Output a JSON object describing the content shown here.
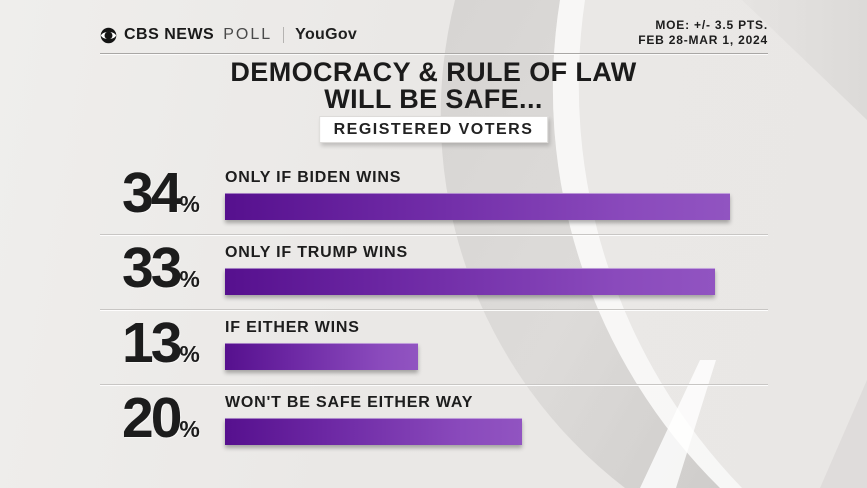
{
  "header": {
    "brand": {
      "cbs": "CBS NEWS",
      "poll": "POLL",
      "partner": "YouGov"
    },
    "moe_line1": "MOE: +/- 3.5 PTS.",
    "moe_line2": "FEB 28-MAR 1, 2024"
  },
  "title": {
    "line1": "DEMOCRACY & RULE OF LAW",
    "line2": "WILL BE SAFE...",
    "badge": "REGISTERED VOTERS"
  },
  "chart_data": {
    "type": "bar",
    "orientation": "horizontal",
    "title": "DEMOCRACY & RULE OF LAW WILL BE SAFE...",
    "subtitle": "REGISTERED VOTERS",
    "categories": [
      "ONLY IF BIDEN WINS",
      "ONLY IF TRUMP WINS",
      "IF EITHER WINS",
      "WON'T BE SAFE EITHER WAY"
    ],
    "values": [
      34,
      33,
      13,
      20
    ],
    "unit": "%",
    "xlim": [
      0,
      45
    ],
    "grid": false,
    "legend": "none",
    "bar_gradient_start": "#56108e",
    "bar_gradient_end": "#9154c1",
    "value_label_color": "#1c1c1c"
  },
  "colors": {
    "background": "#eae8e6",
    "title_text": "#1b1b1b",
    "badge_background": "#ffffff",
    "divider": "#a9a7a5",
    "row_rule": "#c8c6c4"
  }
}
